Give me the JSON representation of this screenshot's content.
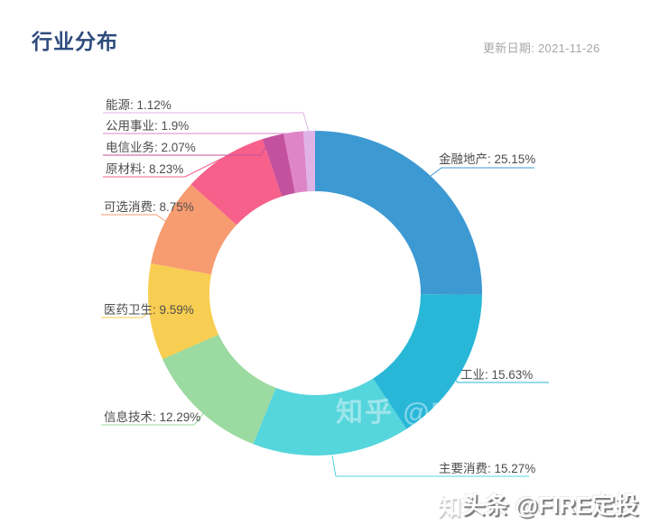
{
  "header": {
    "title": "行业分布",
    "update_date": "更新日期: 2021-11-26"
  },
  "watermark": {
    "primary": "头条 @FIRE定投",
    "ghost_char": "知",
    "ghost_mid": "知乎 @FIRE定投"
  },
  "chart_data": {
    "type": "pie",
    "subtype": "donut",
    "title": "行业分布",
    "unit": "%",
    "start_angle": "top",
    "direction": "clockwise",
    "inner_radius_ratio": 0.63,
    "legend_position": "none",
    "labels_outside": true,
    "slices": [
      {
        "label": "金融地产",
        "value": 25.15,
        "display": "金融地产: 25.15%",
        "color": "#3C99D2"
      },
      {
        "label": "工业",
        "value": 15.63,
        "display": "工业: 15.63%",
        "color": "#29B7D8"
      },
      {
        "label": "主要消费",
        "value": 15.27,
        "display": "主要消费: 15.27%",
        "color": "#55D5DC"
      },
      {
        "label": "信息技术",
        "value": 12.29,
        "display": "信息技术: 12.29%",
        "color": "#9BDAA0"
      },
      {
        "label": "医药卫生",
        "value": 9.59,
        "display": "医药卫生: 9.59%",
        "color": "#F8CE52"
      },
      {
        "label": "可选消费",
        "value": 8.75,
        "display": "可选消费: 8.75%",
        "color": "#F79B70"
      },
      {
        "label": "原材料",
        "value": 8.23,
        "display": "原材料: 8.23%",
        "color": "#F6608A"
      },
      {
        "label": "电信业务",
        "value": 2.07,
        "display": "电信业务: 2.07%",
        "color": "#C4519E"
      },
      {
        "label": "公用事业",
        "value": 1.9,
        "display": "公用事业: 1.9%",
        "color": "#DE85C8"
      },
      {
        "label": "能源",
        "value": 1.12,
        "display": "能源: 1.12%",
        "color": "#DFB3E6"
      }
    ]
  },
  "colors": {
    "title_text": "#2E4B7D",
    "date_text": "#A7A7A7",
    "label_text": "#4D4D4D",
    "background": "#FFFFFF"
  }
}
